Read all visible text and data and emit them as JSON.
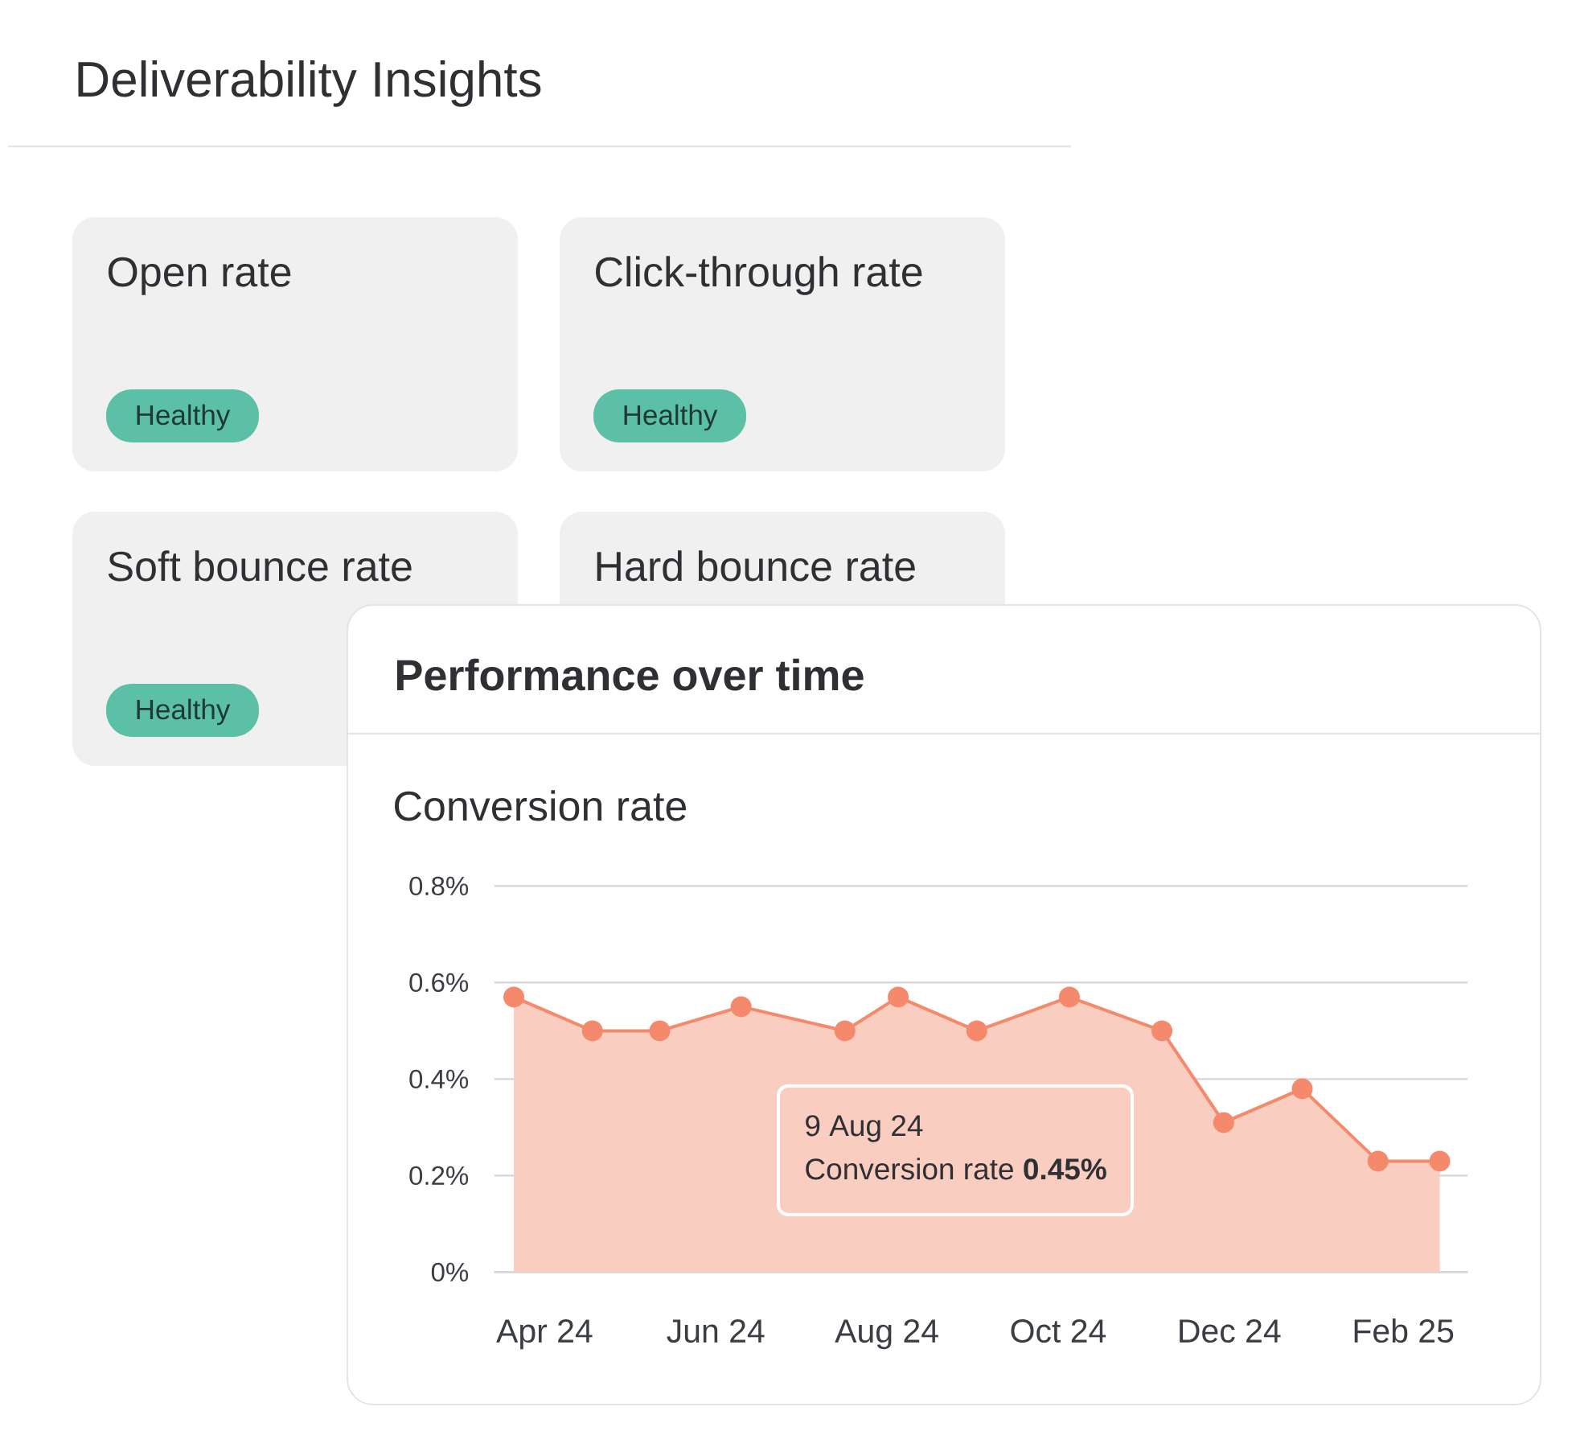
{
  "chart_data": [
    {
      "type": "other",
      "title": "Deliverability Insights",
      "categories": [
        "Open rate",
        "Click-through rate",
        "Soft bounce rate",
        "Hard bounce rate"
      ],
      "annotations": [
        "Healthy",
        "Healthy",
        "Healthy"
      ]
    },
    {
      "type": "area",
      "title": "Performance over time",
      "subtitle": "Conversion rate",
      "x": [
        "2024-03-21",
        "2024-04-18",
        "2024-05-12",
        "2024-06-10",
        "2024-07-17",
        "2024-08-05",
        "2024-09-02",
        "2024-10-05",
        "2024-11-07",
        "2024-11-29",
        "2024-12-27",
        "2025-01-23",
        "2025-02-14"
      ],
      "values": [
        0.57,
        0.5,
        0.5,
        0.55,
        0.5,
        0.57,
        0.5,
        0.57,
        0.5,
        0.31,
        0.38,
        0.23,
        0.23
      ],
      "color": "#f4896b",
      "xlim": [
        "2024-03-14",
        "2025-02-24"
      ],
      "xticks": [
        {
          "value": "2024-04-01",
          "label": "Apr 24"
        },
        {
          "value": "2024-06-01",
          "label": "Jun 24"
        },
        {
          "value": "2024-08-01",
          "label": "Aug 24"
        },
        {
          "value": "2024-10-01",
          "label": "Oct 24"
        },
        {
          "value": "2024-12-01",
          "label": "Dec 24"
        },
        {
          "value": "2025-02-01",
          "label": "Feb 25"
        }
      ],
      "ylim": [
        0,
        0.8
      ],
      "yticks": [
        {
          "value": 0,
          "label": "0%"
        },
        {
          "value": 0.2,
          "label": "0.2%"
        },
        {
          "value": 0.4,
          "label": "0.4%"
        },
        {
          "value": 0.6,
          "label": "0.6%"
        },
        {
          "value": 0.8,
          "label": "0.8%"
        }
      ],
      "grid": "y",
      "marker": "circle",
      "annotations": [
        "9 Aug 24",
        "Conversion rate **0.45%**"
      ]
    }
  ]
}
